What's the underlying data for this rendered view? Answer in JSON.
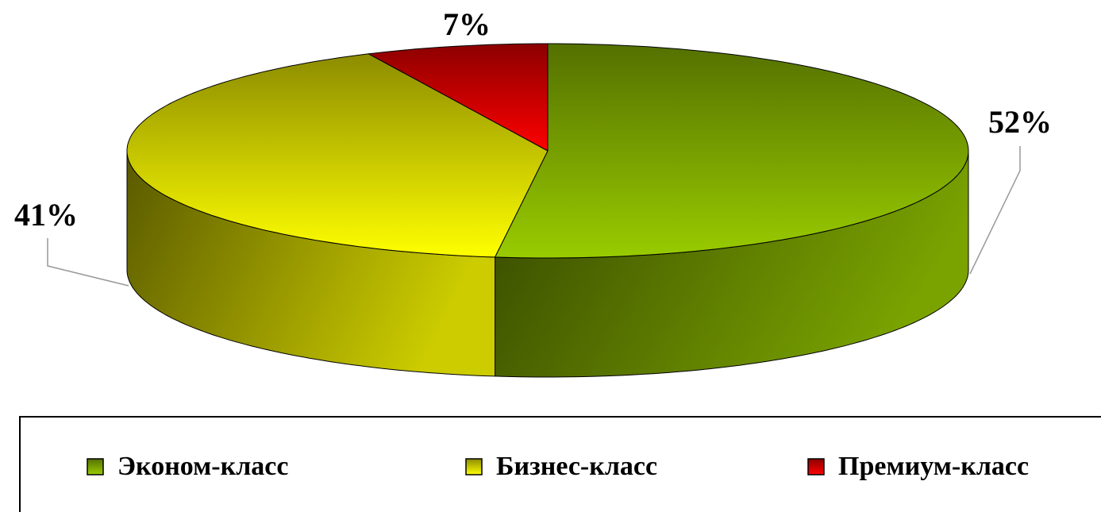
{
  "chart_data": {
    "type": "pie",
    "categories": [
      "Эконом-класс",
      "Бизнес-класс",
      "Премиум-класс"
    ],
    "values": [
      52,
      41,
      7
    ],
    "value_labels": [
      "52%",
      "41%",
      "7%"
    ],
    "colors": [
      "#99cc00",
      "#ffff00",
      "#ff0000"
    ],
    "legend": "bottom"
  }
}
